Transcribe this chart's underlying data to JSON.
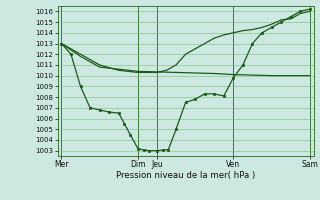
{
  "xlabel": "Pression niveau de la mer( hPa )",
  "ylim": [
    1002.5,
    1016.5
  ],
  "yticks": [
    1003,
    1004,
    1005,
    1006,
    1007,
    1008,
    1009,
    1010,
    1011,
    1012,
    1013,
    1014,
    1015,
    1016
  ],
  "bg_color": "#cce8e0",
  "line_color": "#1a5c1a",
  "vline_color": "#3a7a3a",
  "hgrid_color": "#7abf7a",
  "day_vlines": [
    0,
    4,
    5,
    9,
    13
  ],
  "xtick_positions": [
    0,
    4,
    5,
    9,
    13
  ],
  "xtick_labels": [
    "Mer",
    "Dim",
    "Jeu",
    "Ven",
    "Sam"
  ],
  "line_smooth_x": [
    0,
    1,
    2,
    3,
    4,
    5,
    6,
    7,
    8,
    9,
    10,
    11,
    12,
    13
  ],
  "line_smooth_y": [
    1013.0,
    1011.8,
    1010.8,
    1010.6,
    1010.4,
    1010.35,
    1010.3,
    1010.25,
    1010.2,
    1010.1,
    1010.05,
    1010.0,
    1010.0,
    1010.0
  ],
  "line_upper_x": [
    0,
    1,
    2,
    3,
    4,
    5,
    5.5,
    6,
    6.5,
    7,
    7.5,
    8,
    8.5,
    9,
    9.5,
    10,
    10.5,
    11,
    11.5,
    12,
    12.5,
    13
  ],
  "line_upper_y": [
    1013.0,
    1012.0,
    1011.0,
    1010.5,
    1010.3,
    1010.3,
    1010.5,
    1011.0,
    1012.0,
    1012.5,
    1013.0,
    1013.5,
    1013.8,
    1014.0,
    1014.2,
    1014.3,
    1014.5,
    1014.8,
    1015.2,
    1015.3,
    1015.8,
    1016.0
  ],
  "line_marker_x": [
    0,
    0.5,
    1,
    1.5,
    2,
    2.5,
    3,
    3.3,
    3.6,
    4,
    4.3,
    4.6,
    5,
    5.3,
    5.6,
    6,
    6.5,
    7,
    7.5,
    8,
    8.5,
    9,
    9.5,
    10,
    10.5,
    11,
    11.5,
    12,
    12.5,
    13
  ],
  "line_marker_y": [
    1013.0,
    1012.0,
    1009.0,
    1007.0,
    1006.8,
    1006.6,
    1006.5,
    1005.5,
    1004.5,
    1003.2,
    1003.05,
    1003.0,
    1003.0,
    1003.05,
    1003.1,
    1005.0,
    1007.5,
    1007.8,
    1008.3,
    1008.3,
    1008.1,
    1009.8,
    1011.0,
    1013.0,
    1014.0,
    1014.5,
    1015.0,
    1015.5,
    1016.0,
    1016.2
  ],
  "marker_style": "s",
  "marker_size": 2.0
}
